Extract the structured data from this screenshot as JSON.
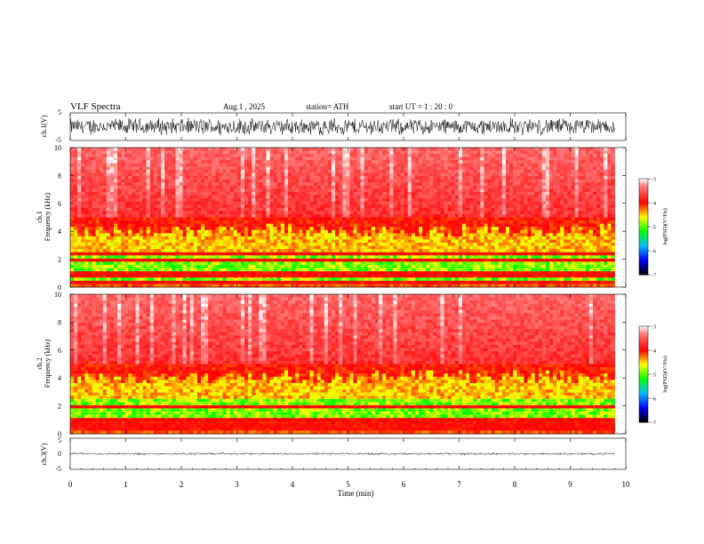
{
  "header": {
    "title": "VLF  Spectra",
    "date": "Aug.1  , 2025",
    "station": "station= ATH",
    "start": "start  UT  =    1  : 20 : 0"
  },
  "chart_data": [
    {
      "type": "line",
      "panel": "ch1-waveform",
      "ylabel": "ch.1(V)",
      "ylim": [
        -5,
        5
      ],
      "yticks": [
        "5",
        "-5"
      ],
      "xlim": [
        0,
        10
      ],
      "description_note": "dense oscillating waveform, amplitude approx ±3 V"
    },
    {
      "type": "heatmap",
      "panel": "ch1-spectrogram",
      "ylabel": "ch.1\nFrequency  (kHz)",
      "ylabel_line1": "ch.1",
      "ylabel_line2": "Frequency  (kHz)",
      "ylim": [
        0,
        10
      ],
      "yticks": [
        "0",
        "2",
        "4",
        "6",
        "8",
        "10"
      ],
      "xlim": [
        0,
        9.8
      ],
      "colorbar": {
        "label": "log(PSD)(V²/Hz)",
        "range": [
          -7,
          -3
        ],
        "ticks": [
          "-3",
          "-4",
          "-5",
          "-6",
          "-7"
        ]
      },
      "bands_khz": [
        2.0,
        2.3,
        0.9,
        0.3
      ]
    },
    {
      "type": "heatmap",
      "panel": "ch2-spectrogram",
      "ylabel": "ch.2\nFrequency  (kHz)",
      "ylabel_line1": "ch.2",
      "ylabel_line2": "Frequency  (kHz)",
      "ylim": [
        0,
        10
      ],
      "yticks": [
        "0",
        "2",
        "4",
        "6",
        "8",
        "10"
      ],
      "xlim": [
        0,
        9.8
      ],
      "colorbar": {
        "label": "log(PSD)(V²/Hz)",
        "range": [
          -7,
          -3
        ],
        "ticks": [
          "-3",
          "-4",
          "-5",
          "-6",
          "-7"
        ]
      },
      "bands_khz": [
        2.0,
        0.9,
        0.5,
        0.3
      ]
    },
    {
      "type": "line",
      "panel": "ch3-waveform",
      "ylabel": "ch.3(V)",
      "ylim": [
        -5,
        5
      ],
      "yticks": [
        "5",
        "0",
        "-5"
      ],
      "xlim": [
        0,
        10
      ],
      "description_note": "nearly flat trace around 0 V"
    }
  ],
  "xaxis": {
    "label": "Time  (min)",
    "ticks": [
      "0",
      "1",
      "2",
      "3",
      "4",
      "5",
      "6",
      "7",
      "8",
      "9",
      "10"
    ],
    "range": [
      0,
      10
    ]
  },
  "colors": {
    "colormap": [
      "#000000",
      "#0000ff",
      "#00c0ff",
      "#00ff00",
      "#ffff00",
      "#ff0000",
      "#ffffff"
    ],
    "axis": "#000000"
  }
}
